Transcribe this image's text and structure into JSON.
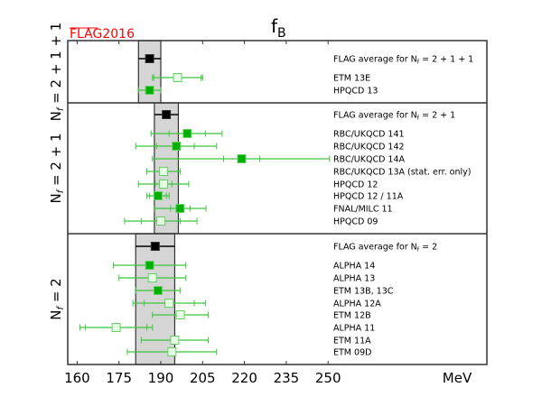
{
  "logo": "FLAG2016",
  "colors": {
    "band": "#d5d5d5",
    "average": "#000000",
    "filled_marker": "#00b000",
    "open_marker_fill": "#e4ffe4",
    "marker_stroke": "#66d066",
    "errorbar": "#3cc83c",
    "logo": "#ff0000"
  },
  "chart_data": {
    "type": "scatter",
    "title": "f",
    "title_subscript": "B",
    "xlabel": "MeV",
    "xlim": [
      157,
      308
    ],
    "xticks": [
      160,
      175,
      190,
      205,
      220,
      235,
      250
    ],
    "xtick_labels": [
      "160",
      "175",
      "190",
      "205",
      "220",
      "235",
      "250"
    ],
    "sections": [
      {
        "label": "N",
        "label_sub": "f",
        "label_rest": " = 2 + 1 + 1",
        "band": [
          182,
          190
        ],
        "entries": [
          {
            "name": "FLAG average for N",
            "name_sub": "f",
            "name_rest": " = 2 + 1 + 1",
            "kind": "average",
            "value": 186,
            "err": [
              182,
              190
            ]
          },
          {
            "name": "ETM 13E",
            "kind": "open",
            "value": 196,
            "err": [
              187,
              205
            ],
            "inner": [
              187.5,
              204.5
            ]
          },
          {
            "name": "HPQCD 13",
            "kind": "filled",
            "value": 186,
            "err": [
              182,
              190
            ]
          }
        ]
      },
      {
        "label": "N",
        "label_sub": "f",
        "label_rest": " = 2 + 1",
        "band": [
          187.7,
          196.3
        ],
        "entries": [
          {
            "name": "FLAG average for N",
            "name_sub": "f",
            "name_rest": " = 2 + 1",
            "kind": "average",
            "value": 192,
            "err": [
              187.7,
              196.3
            ]
          },
          {
            "name": "RBC/UKQCD 141",
            "kind": "filled",
            "value": 199.5,
            "err": [
              186.5,
              212
            ],
            "inner": [
              193,
              206
            ]
          },
          {
            "name": "RBC/UKQCD 142",
            "kind": "filled",
            "value": 195.6,
            "err": [
              181,
              210
            ],
            "inner": [
              188.5,
              202
            ]
          },
          {
            "name": "RBC/UKQCD 14A",
            "kind": "filled",
            "value": 219,
            "err": [
              187,
              250.5
            ],
            "inner": [
              212.5,
              225.5
            ]
          },
          {
            "name": "RBC/UKQCD 13A (stat. err. only)",
            "kind": "open",
            "value": 191,
            "err": [
              185,
              197
            ]
          },
          {
            "name": "HPQCD 12",
            "kind": "open",
            "value": 191,
            "err": [
              182,
              200
            ],
            "inner": [
              188,
              194
            ]
          },
          {
            "name": "HPQCD 12 / 11A",
            "kind": "filled",
            "value": 189,
            "err": [
              185,
              193
            ],
            "inner": [
              186,
              192
            ]
          },
          {
            "name": "FNAL/MILC 11",
            "kind": "filled",
            "value": 196.9,
            "err": [
              187.6,
              206.2
            ],
            "inner": [
              193.5,
              200.5
            ]
          },
          {
            "name": "HPQCD 09",
            "kind": "open",
            "value": 190,
            "err": [
              177,
              203
            ],
            "inner": [
              183,
              197
            ]
          }
        ]
      },
      {
        "label": "N",
        "label_sub": "f",
        "label_rest": " = 2",
        "band": [
          181,
          195
        ],
        "entries": [
          {
            "name": "FLAG average for N",
            "name_sub": "f",
            "name_rest": " = 2",
            "kind": "average",
            "value": 188,
            "err": [
              181,
              195
            ]
          },
          {
            "name": "ALPHA 14",
            "kind": "filled",
            "value": 186,
            "err": [
              173,
              199
            ]
          },
          {
            "name": "ALPHA 13",
            "kind": "open",
            "value": 187,
            "err": [
              175,
              199
            ]
          },
          {
            "name": "ETM 13B, 13C",
            "kind": "filled",
            "value": 189,
            "err": [
              181,
              197
            ]
          },
          {
            "name": "ALPHA 12A",
            "kind": "open",
            "value": 193,
            "err": [
              180,
              206
            ],
            "inner": [
              184,
              202
            ]
          },
          {
            "name": "ETM 12B",
            "kind": "open",
            "value": 197,
            "err": [
              187,
              207
            ]
          },
          {
            "name": "ALPHA 11",
            "kind": "open",
            "value": 174,
            "err": [
              161,
              187
            ],
            "inner": [
              163,
              185
            ]
          },
          {
            "name": "ETM 11A",
            "kind": "open",
            "value": 195,
            "err": [
              183,
              207
            ]
          },
          {
            "name": "ETM 09D",
            "kind": "open",
            "value": 194,
            "err": [
              178,
              210
            ]
          }
        ]
      }
    ]
  }
}
